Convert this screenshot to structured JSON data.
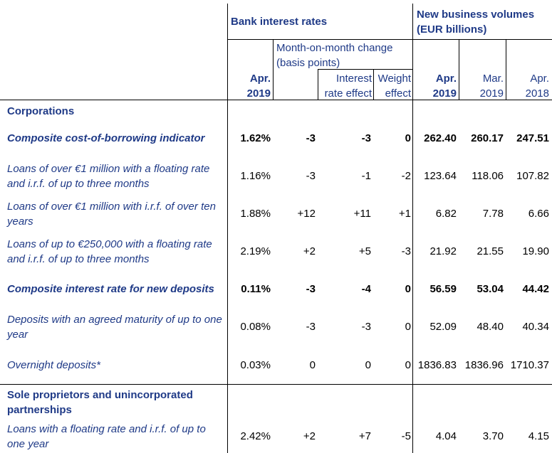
{
  "header": {
    "bank_interest_rates": "Bank interest rates",
    "new_business_volumes": "New business volumes (EUR billions)",
    "mom_change": "Month-on-month change (basis points)",
    "interest_rate_effect": "Interest rate effect",
    "weight_effect": "Weight effect",
    "col_rate": "Apr. 2019",
    "col_vol1": "Apr. 2019",
    "col_vol2": "Mar. 2019",
    "col_vol3": "Apr. 2018"
  },
  "sections": {
    "corporations": "Corporations",
    "sole": "Sole proprietors and unincorporated partnerships"
  },
  "rows": [
    {
      "label": "Composite cost-of-borrowing indicator",
      "rate": "1.62%",
      "mom": "-3",
      "ire": "-3",
      "we": "0",
      "v1": "262.40",
      "v2": "260.17",
      "v3": "247.51"
    },
    {
      "label": "Loans of over €1 million with a floating rate and i.r.f. of up to three months",
      "rate": "1.16%",
      "mom": "-3",
      "ire": "-1",
      "we": "-2",
      "v1": "123.64",
      "v2": "118.06",
      "v3": "107.82"
    },
    {
      "label": "Loans of over €1 million with i.r.f. of over ten years",
      "rate": "1.88%",
      "mom": "+12",
      "ire": "+11",
      "we": "+1",
      "v1": "6.82",
      "v2": "7.78",
      "v3": "6.66"
    },
    {
      "label": "Loans of up to €250,000 with a floating rate and i.r.f. of up to three months",
      "rate": "2.19%",
      "mom": "+2",
      "ire": "+5",
      "we": "-3",
      "v1": "21.92",
      "v2": "21.55",
      "v3": "19.90"
    },
    {
      "label": "Composite interest rate for new deposits",
      "rate": "0.11%",
      "mom": "-3",
      "ire": "-4",
      "we": "0",
      "v1": "56.59",
      "v2": "53.04",
      "v3": "44.42"
    },
    {
      "label": "Deposits with an agreed maturity of up to one year",
      "rate": "0.08%",
      "mom": "-3",
      "ire": "-3",
      "we": "0",
      "v1": "52.09",
      "v2": "48.40",
      "v3": "40.34"
    },
    {
      "label": "Overnight deposits*",
      "rate": "0.03%",
      "mom": "0",
      "ire": "0",
      "we": "0",
      "v1": "1836.83",
      "v2": "1836.96",
      "v3": "1710.37"
    },
    {
      "label": "Loans with a floating rate and i.r.f. of up to one year",
      "rate": "2.42%",
      "mom": "+2",
      "ire": "+7",
      "we": "-5",
      "v1": "4.04",
      "v2": "3.70",
      "v3": "4.15"
    }
  ]
}
